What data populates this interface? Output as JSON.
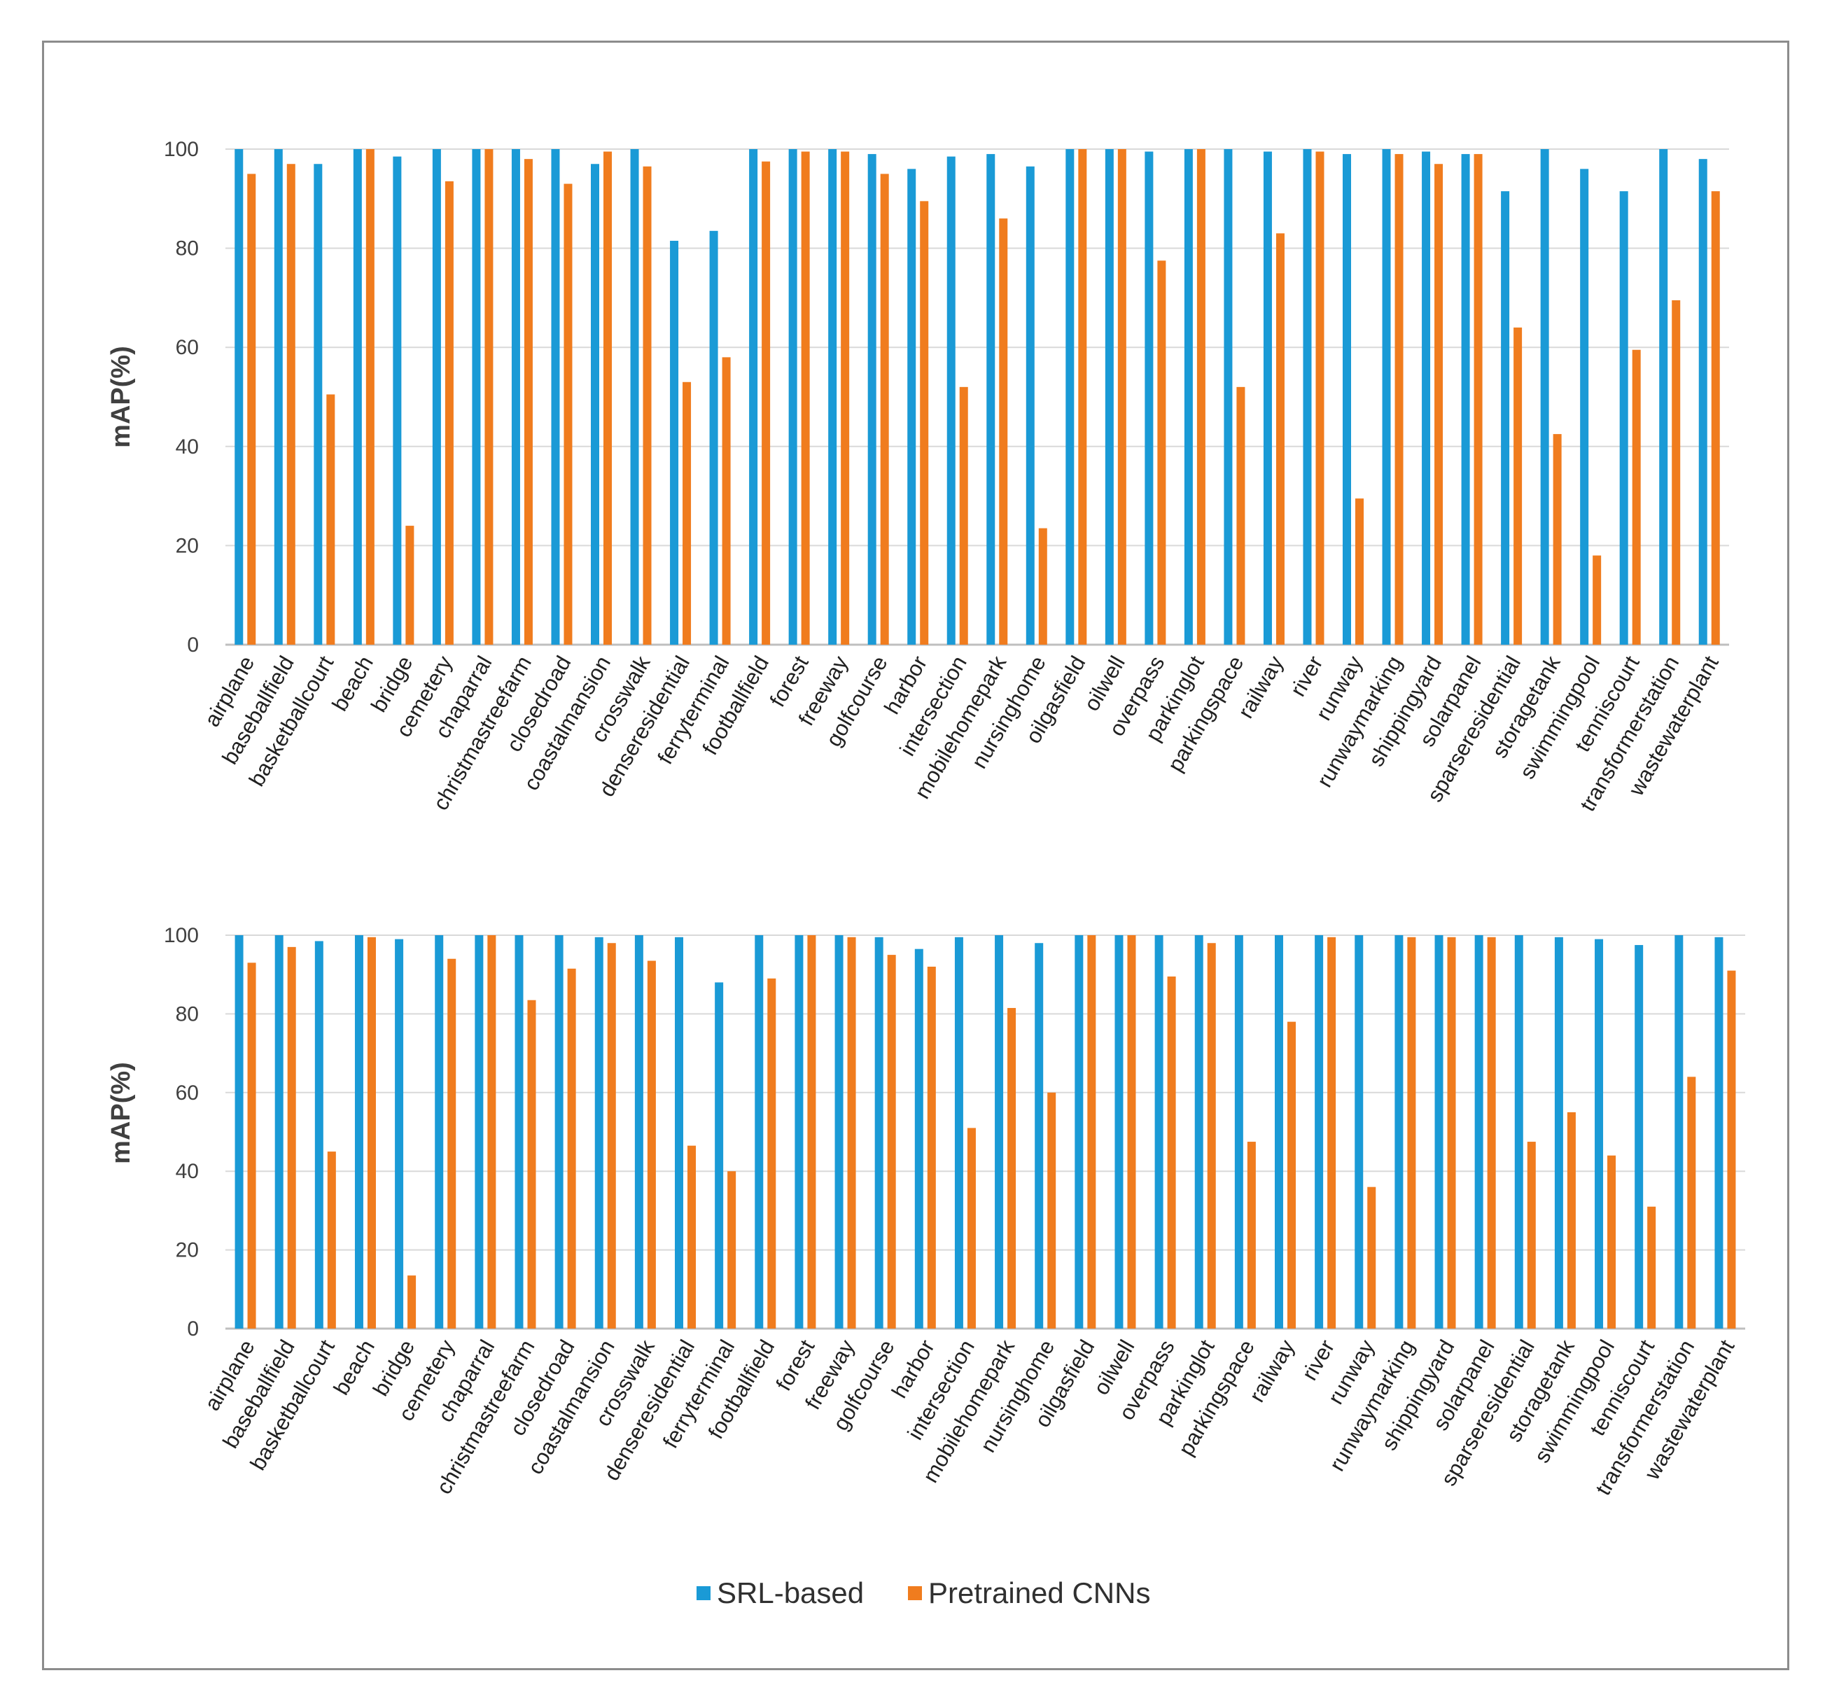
{
  "legend": {
    "series": [
      {
        "name": "SRL-based",
        "color": "#1a9ad6"
      },
      {
        "name": "Pretrained CNNs",
        "color": "#f07c1e"
      }
    ]
  },
  "chart_data": [
    {
      "type": "bar",
      "ylabel": "mAP(%)",
      "ylim": [
        0,
        100
      ],
      "yticks": [
        0,
        20,
        40,
        60,
        80,
        100
      ],
      "grid": true,
      "categories": [
        "airplane",
        "baseballfield",
        "basketballcourt",
        "beach",
        "bridge",
        "cemetery",
        "chaparral",
        "christmastreefarm",
        "closedroad",
        "coastalmansion",
        "crosswalk",
        "denseresidential",
        "ferryterminal",
        "footballfield",
        "forest",
        "freeway",
        "golfcourse",
        "harbor",
        "intersection",
        "mobilehomepark",
        "nursinghome",
        "oilgasfield",
        "oilwell",
        "overpass",
        "parkinglot",
        "parkingspace",
        "railway",
        "river",
        "runway",
        "runwaymarking",
        "shippingyard",
        "solarpanel",
        "sparseresidential",
        "storagetank",
        "swimmingpool",
        "tenniscourt",
        "transformerstation",
        "wastewaterplant"
      ],
      "series": [
        {
          "name": "SRL-based",
          "values": [
            100,
            100,
            97,
            100,
            98.5,
            100,
            100,
            100,
            100,
            97,
            100,
            81.5,
            83.5,
            100,
            100,
            100,
            99,
            96,
            98.5,
            99,
            96.5,
            100,
            100,
            99.5,
            100,
            100,
            99.5,
            100,
            99,
            100,
            99.5,
            99,
            91.5,
            100,
            96,
            91.5,
            100,
            98
          ]
        },
        {
          "name": "Pretrained CNNs",
          "values": [
            95,
            97,
            50.5,
            100,
            24,
            93.5,
            100,
            98,
            93,
            99.5,
            96.5,
            53,
            58,
            97.5,
            99.5,
            99.5,
            95,
            89.5,
            52,
            86,
            23.5,
            100,
            100,
            77.5,
            100,
            52,
            83,
            99.5,
            29.5,
            99,
            97,
            99,
            64,
            42.5,
            18,
            59.5,
            69.5,
            91.5
          ]
        }
      ]
    },
    {
      "type": "bar",
      "ylabel": "mAP(%)",
      "ylim": [
        0,
        100
      ],
      "yticks": [
        0,
        20,
        40,
        60,
        80,
        100
      ],
      "grid": true,
      "categories": [
        "airplane",
        "baseballfield",
        "basketballcourt",
        "beach",
        "bridge",
        "cemetery",
        "chaparral",
        "christmastreefarm",
        "closedroad",
        "coastalmansion",
        "crosswalk",
        "denseresidential",
        "ferryterminal",
        "footballfield",
        "forest",
        "freeway",
        "golfcourse",
        "harbor",
        "intersection",
        "mobilehomepark",
        "nursinghome",
        "oilgasfield",
        "oilwell",
        "overpass",
        "parkinglot",
        "parkingspace",
        "railway",
        "river",
        "runway",
        "runwaymarking",
        "shippingyard",
        "solarpanel",
        "sparseresidential",
        "storagetank",
        "swimmingpool",
        "tenniscourt",
        "transformerstation",
        "wastewaterplant"
      ],
      "series": [
        {
          "name": "SRL-based",
          "values": [
            100,
            100,
            98.5,
            100,
            99,
            100,
            100,
            100,
            100,
            99.5,
            100,
            99.5,
            88,
            100,
            100,
            100,
            99.5,
            96.5,
            99.5,
            100,
            98,
            100,
            100,
            100,
            100,
            100,
            100,
            100,
            100,
            100,
            100,
            100,
            100,
            99.5,
            99,
            97.5,
            100,
            99.5
          ]
        },
        {
          "name": "Pretrained CNNs",
          "values": [
            93,
            97,
            45,
            99.5,
            13.5,
            94,
            100,
            83.5,
            91.5,
            98,
            93.5,
            46.5,
            40,
            89,
            100,
            99.5,
            95,
            92,
            51,
            81.5,
            60,
            100,
            100,
            89.5,
            98,
            47.5,
            78,
            99.5,
            36,
            99.5,
            99.5,
            99.5,
            47.5,
            55,
            44,
            31,
            64,
            91
          ]
        }
      ]
    }
  ]
}
